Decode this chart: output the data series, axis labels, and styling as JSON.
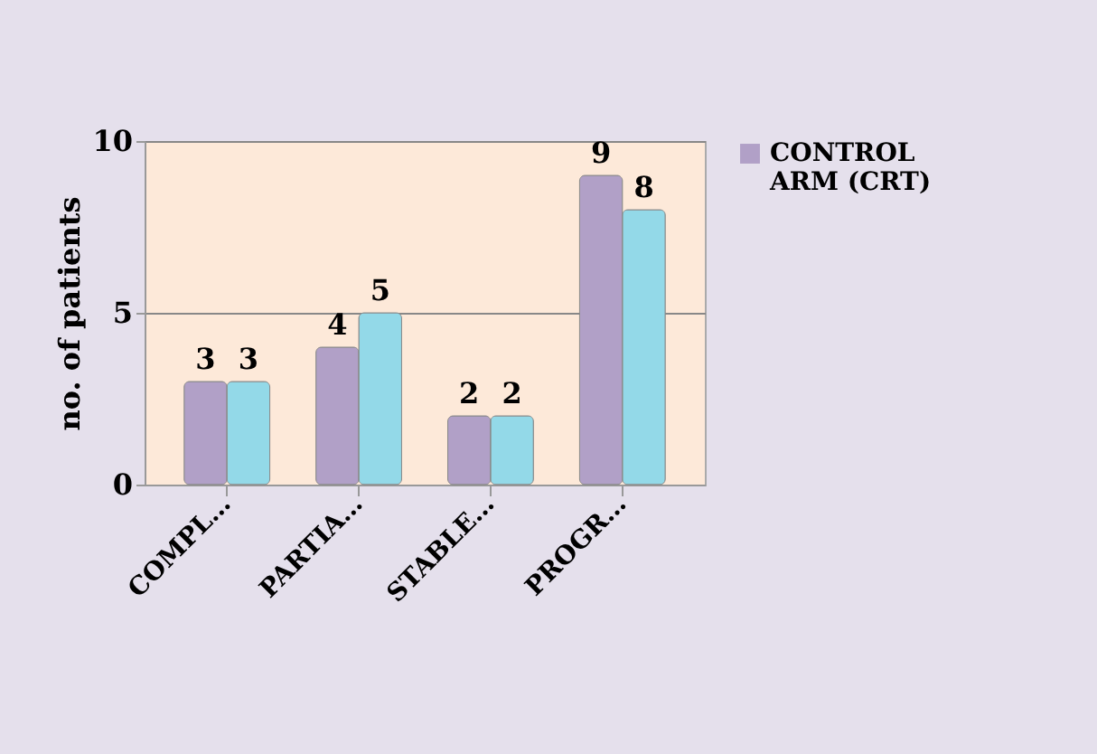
{
  "chart_data": {
    "type": "bar",
    "ylabel": "no. of patients",
    "categories": [
      "COMPL…",
      "PARTIA…",
      "STABLE…",
      "PROGR…"
    ],
    "series": [
      {
        "name": "CONTROL ARM (CRT)",
        "color": "#b1a0c7",
        "values": [
          3,
          4,
          2,
          9
        ]
      },
      {
        "color": "#93d9e8",
        "values": [
          3,
          5,
          2,
          8
        ]
      }
    ],
    "ylim": [
      0,
      10
    ],
    "yticks": [
      0,
      5,
      10
    ],
    "grid": "y",
    "legend": "right",
    "data_labels": true
  }
}
